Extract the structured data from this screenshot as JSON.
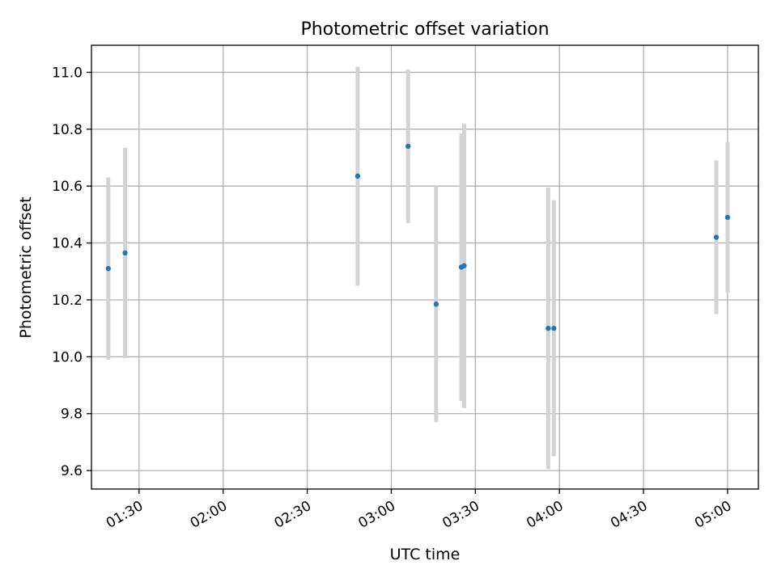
{
  "chart_data": {
    "type": "scatter",
    "title": "Photometric offset variation",
    "xlabel": "UTC time",
    "ylabel": "Photometric offset",
    "xlim": [
      "01:13",
      "05:11"
    ],
    "ylim": [
      9.535,
      11.095
    ],
    "x_ticks": [
      "01:30",
      "02:00",
      "02:30",
      "03:00",
      "03:30",
      "04:00",
      "04:30",
      "05:00"
    ],
    "y_ticks": [
      "9.6",
      "9.8",
      "10.0",
      "10.2",
      "10.4",
      "10.6",
      "10.8",
      "11.0"
    ],
    "grid": true,
    "legend": "none",
    "point_color": "#1f77b4",
    "errorbar_color": "#d3d3d3",
    "points": [
      {
        "x": "01:19",
        "y": 10.31,
        "err": 0.32
      },
      {
        "x": "01:25",
        "y": 10.365,
        "err": 0.37
      },
      {
        "x": "02:48",
        "y": 10.635,
        "err": 0.385
      },
      {
        "x": "03:06",
        "y": 10.74,
        "err": 0.27
      },
      {
        "x": "03:16",
        "y": 10.185,
        "err": 0.415
      },
      {
        "x": "03:25",
        "y": 10.315,
        "err": 0.47
      },
      {
        "x": "03:26",
        "y": 10.32,
        "err": 0.5
      },
      {
        "x": "03:56",
        "y": 10.1,
        "err": 0.495
      },
      {
        "x": "03:58",
        "y": 10.1,
        "err": 0.45
      },
      {
        "x": "04:56",
        "y": 10.42,
        "err": 0.27
      },
      {
        "x": "05:00",
        "y": 10.49,
        "err": 0.265
      }
    ]
  }
}
